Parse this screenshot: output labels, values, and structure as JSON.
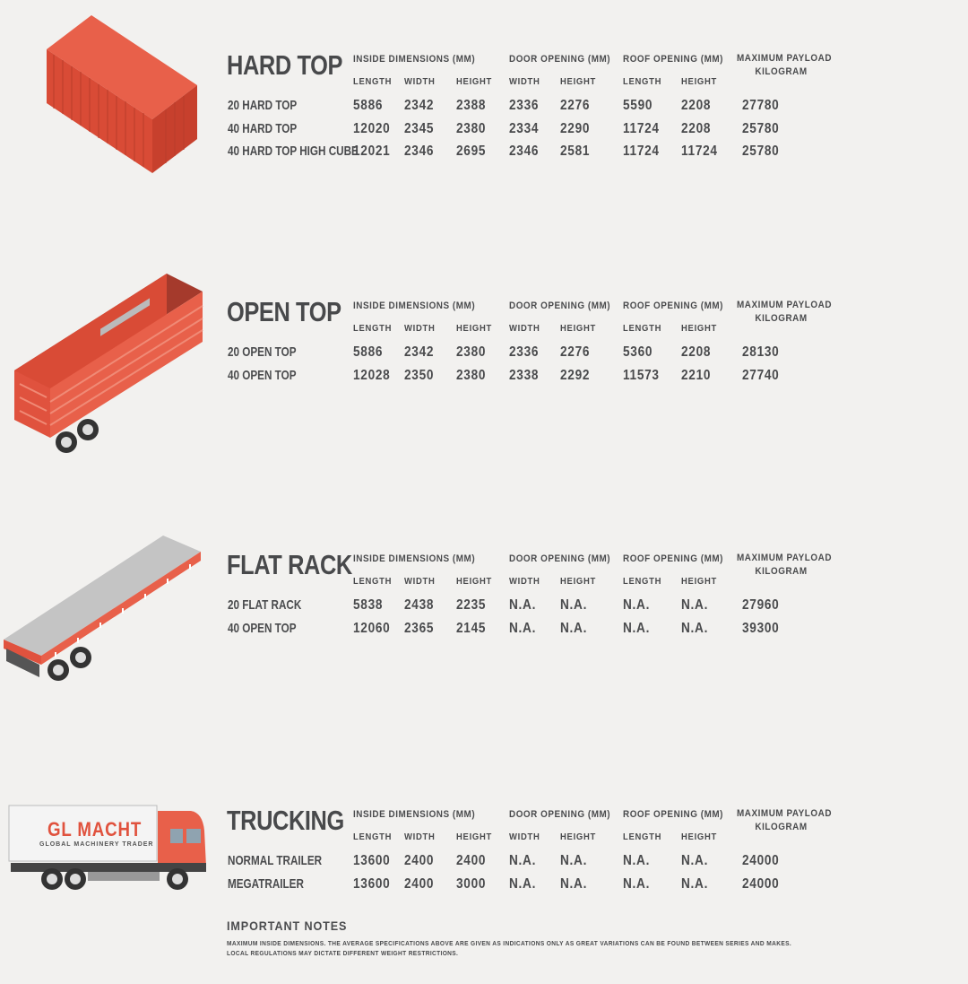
{
  "columns": {
    "inside": "INSIDE DIMENSIONS (MM)",
    "door": "DOOR OPENING (MM)",
    "roof": "ROOF OPENING (MM)",
    "payload_line1": "MAXIMUM PAYLOAD",
    "payload_line2": "KILOGRAM",
    "length": "LENGTH",
    "width": "WIDTH",
    "height": "HEIGHT"
  },
  "sections": [
    {
      "title": "HARD TOP",
      "illustration": "container-icon",
      "rows": [
        {
          "name": "20 HARD TOP",
          "values": [
            "5886",
            "2342",
            "2388",
            "2336",
            "2276",
            "5590",
            "2208",
            "27780"
          ]
        },
        {
          "name": "40 HARD TOP",
          "values": [
            "12020",
            "2345",
            "2380",
            "2334",
            "2290",
            "11724",
            "2208",
            "25780"
          ]
        },
        {
          "name": "40 HARD TOP HIGH CUBE",
          "values": [
            "12021",
            "2346",
            "2695",
            "2346",
            "2581",
            "11724",
            "11724",
            "25780"
          ]
        }
      ]
    },
    {
      "title": "OPEN TOP",
      "illustration": "open-top-trailer-icon",
      "rows": [
        {
          "name": "20 OPEN TOP",
          "values": [
            "5886",
            "2342",
            "2380",
            "2336",
            "2276",
            "5360",
            "2208",
            "28130"
          ]
        },
        {
          "name": "40 OPEN TOP",
          "values": [
            "12028",
            "2350",
            "2380",
            "2338",
            "2292",
            "11573",
            "2210",
            "27740"
          ]
        }
      ]
    },
    {
      "title": "FLAT RACK",
      "illustration": "flat-rack-trailer-icon",
      "rows": [
        {
          "name": "20 FLAT RACK",
          "values": [
            "5838",
            "2438",
            "2235",
            "N.A.",
            "N.A.",
            "N.A.",
            "N.A.",
            "27960"
          ]
        },
        {
          "name": "40 OPEN TOP",
          "values": [
            "12060",
            "2365",
            "2145",
            "N.A.",
            "N.A.",
            "N.A.",
            "N.A.",
            "39300"
          ]
        }
      ]
    },
    {
      "title": "TRUCKING",
      "illustration": "truck-icon",
      "rows": [
        {
          "name": "NORMAL TRAILER",
          "values": [
            "13600",
            "2400",
            "2400",
            "N.A.",
            "N.A.",
            "N.A.",
            "N.A.",
            "24000"
          ]
        },
        {
          "name": "MEGATRAILER",
          "values": [
            "13600",
            "2400",
            "3000",
            "N.A.",
            "N.A.",
            "N.A.",
            "N.A.",
            "24000"
          ]
        }
      ]
    }
  ],
  "truck_logo": {
    "brand": "GL MACHT",
    "tagline": "GLOBAL MACHINERY TRADER"
  },
  "notes": {
    "title": "IMPORTANT NOTES",
    "line1": "MAXIMUM INSIDE DIMENSIONS. THE AVERAGE SPECIFICATIONS ABOVE ARE GIVEN AS INDICATIONS ONLY AS GREAT VARIATIONS CAN BE FOUND BETWEEN SERIES AND MAKES.",
    "line2": "LOCAL REGULATIONS MAY DICTATE DIFFERENT WEIGHT RESTRICTIONS."
  },
  "colors": {
    "text": "#4a4b4d",
    "accent_red": "#e0523e",
    "background": "#f2f1ef",
    "flat_gray": "#c4c4c4"
  }
}
